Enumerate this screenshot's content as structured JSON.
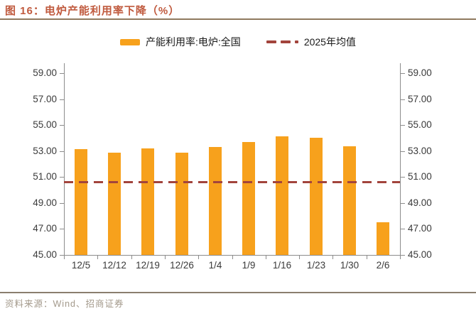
{
  "header": {
    "title": "图 16：电炉产能利用率下降（%）"
  },
  "legend": {
    "bar_label": "产能利用率:电炉:全国",
    "line_label": "2025年均值"
  },
  "footer": {
    "source": "资料来源：Wind、招商证券"
  },
  "colors": {
    "bar": "#F7A11C",
    "mean_line": "#A2443C",
    "title_text": "#C05A3E",
    "axis": "#8C8C8C",
    "tick_label": "#3A3A3A"
  },
  "chart_data": {
    "type": "bar",
    "title": "电炉产能利用率下降（%）",
    "categories": [
      "12/5",
      "12/12",
      "12/19",
      "12/26",
      "1/4",
      "1/9",
      "1/16",
      "1/23",
      "1/30",
      "2/6"
    ],
    "series": [
      {
        "name": "产能利用率:电炉:全国",
        "type": "bar",
        "color": "#F7A11C",
        "values": [
          53.15,
          52.85,
          53.2,
          52.9,
          53.3,
          53.7,
          54.15,
          54.05,
          53.35,
          47.5
        ]
      },
      {
        "name": "2025年均值",
        "type": "dashed-line",
        "color": "#A2443C",
        "value": 50.65
      }
    ],
    "xlabel": "",
    "ylabel": "",
    "ylim": [
      45,
      59
    ],
    "yticks": [
      45,
      47,
      49,
      51,
      53,
      55,
      57,
      59
    ],
    "ytick_format": "2dp",
    "dual_y_axis": true,
    "grid": false,
    "legend_position": "top-center"
  }
}
